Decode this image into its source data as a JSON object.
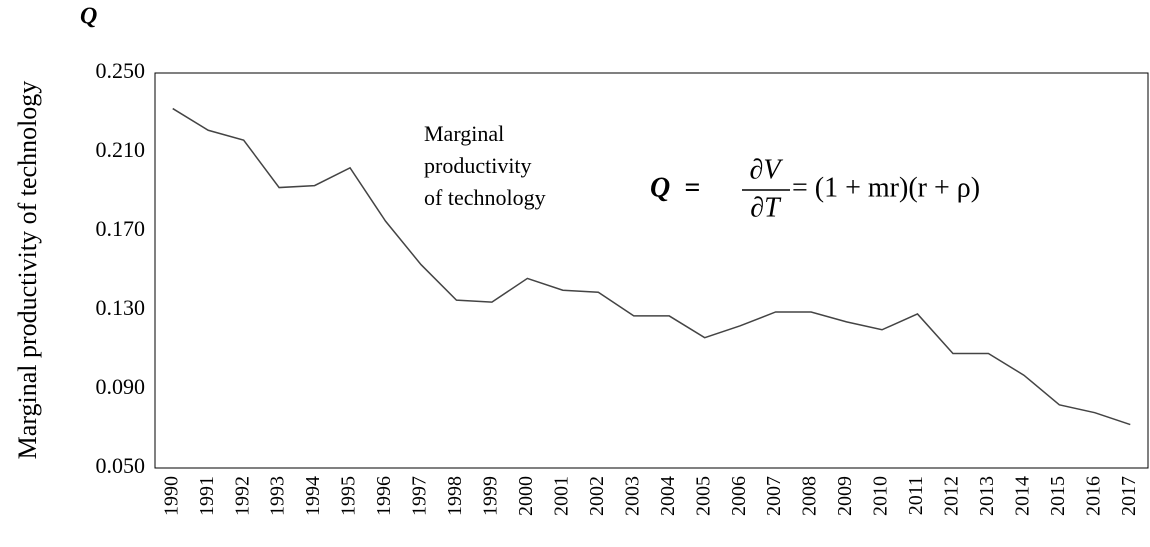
{
  "chart_data": {
    "type": "line",
    "corner_label": "Q",
    "y_label": "Marginal productivity of technology",
    "annotation": [
      "Marginal",
      "productivity",
      "of technology"
    ],
    "formula": {
      "lhs": "Q  =",
      "numerator": "∂V",
      "denominator": "∂T",
      "rhs": "= (1 + mr)(r + ρ)"
    },
    "categories": [
      "1990",
      "1991",
      "1992",
      "1993",
      "1994",
      "1995",
      "1996",
      "1997",
      "1998",
      "1999",
      "2000",
      "2001",
      "2002",
      "2003",
      "2004",
      "2005",
      "2006",
      "2007",
      "2008",
      "2009",
      "2010",
      "2011",
      "2012",
      "2013",
      "2014",
      "2015",
      "2016",
      "2017"
    ],
    "series": [
      {
        "color": "#444444",
        "values": [
          0.232,
          0.221,
          0.216,
          0.192,
          0.193,
          0.202,
          0.175,
          0.153,
          0.135,
          0.134,
          0.146,
          0.14,
          0.139,
          0.127,
          0.127,
          0.116,
          0.122,
          0.129,
          0.129,
          0.124,
          0.12,
          0.128,
          0.108,
          0.108,
          0.097,
          0.082,
          0.078,
          0.072
        ]
      }
    ],
    "ylim": [
      0.05,
      0.25
    ],
    "yticks": [
      {
        "value": 0.05,
        "label": "0.050"
      },
      {
        "value": 0.09,
        "label": "0.090"
      },
      {
        "value": 0.13,
        "label": "0.130"
      },
      {
        "value": 0.17,
        "label": "0.170"
      },
      {
        "value": 0.21,
        "label": "0.210"
      },
      {
        "value": 0.25,
        "label": "0.250"
      }
    ],
    "grid": false
  }
}
